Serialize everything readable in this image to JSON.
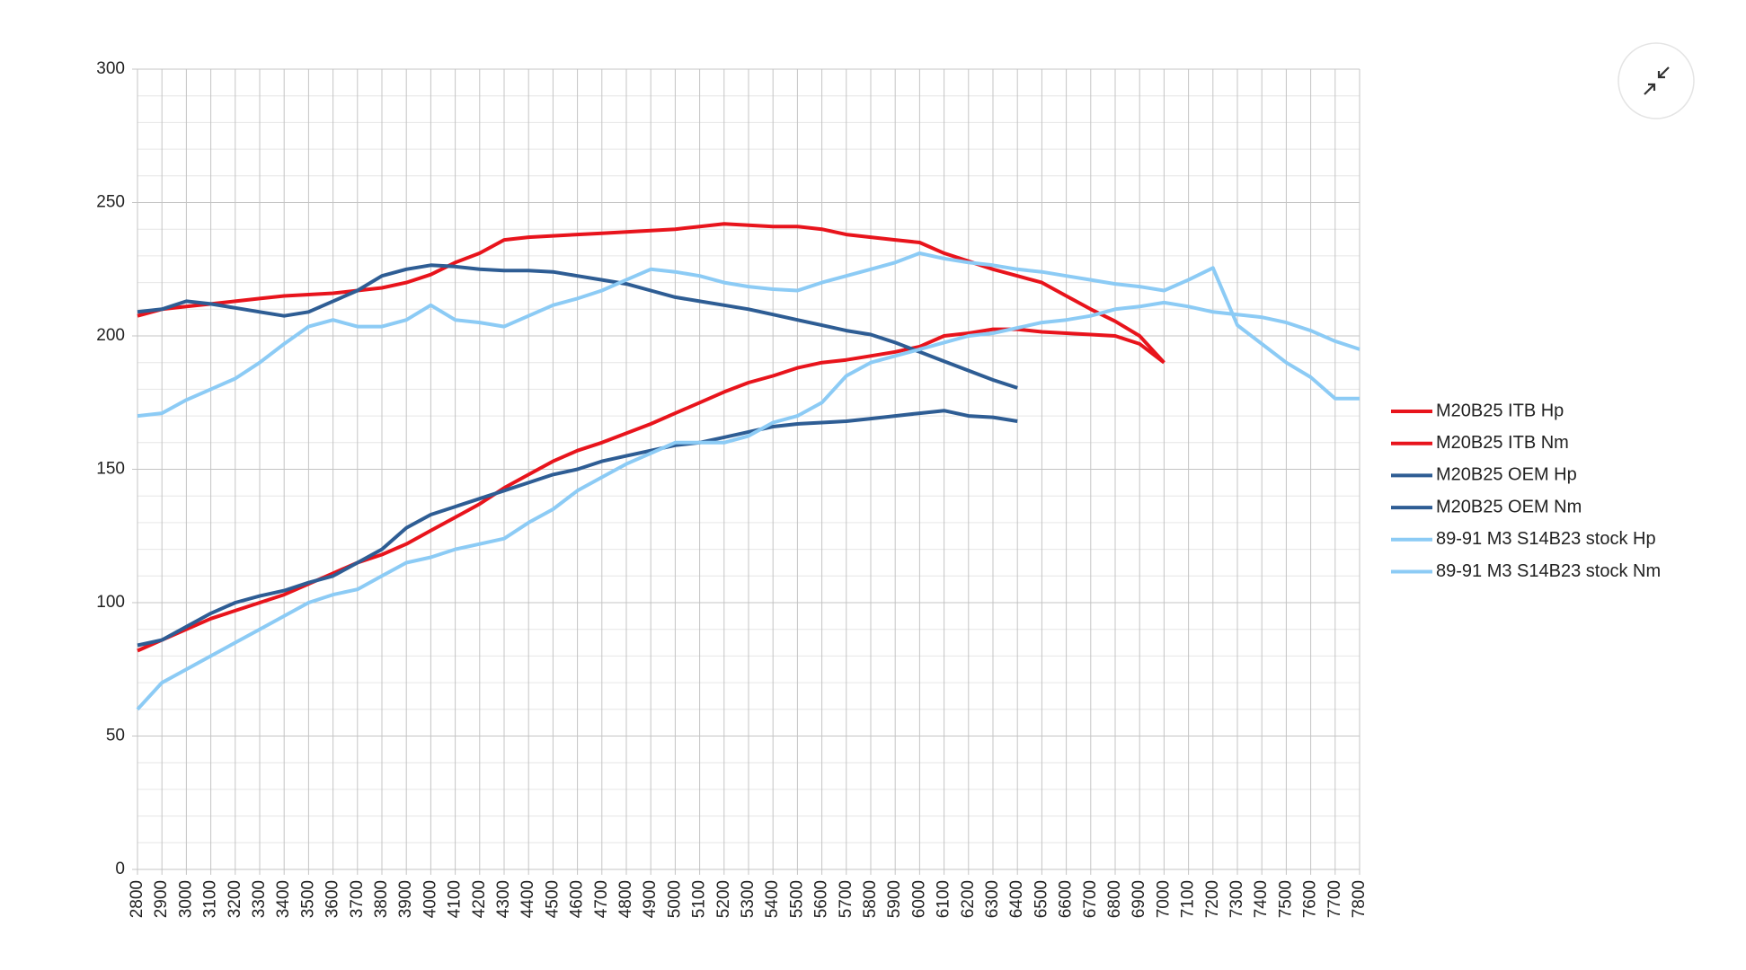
{
  "chart_data": {
    "type": "line",
    "x": [
      2800,
      2900,
      3000,
      3100,
      3200,
      3300,
      3400,
      3500,
      3600,
      3700,
      3800,
      3900,
      4000,
      4100,
      4200,
      4300,
      4400,
      4500,
      4600,
      4700,
      4800,
      4900,
      5000,
      5100,
      5200,
      5300,
      5400,
      5500,
      5600,
      5700,
      5800,
      5900,
      6000,
      6100,
      6200,
      6300,
      6400,
      6500,
      6600,
      6700,
      6800,
      6900,
      7000,
      7100,
      7200,
      7300,
      7400,
      7500,
      7600,
      7700,
      7800
    ],
    "xlim": [
      2800,
      7800
    ],
    "ylim": [
      0,
      300
    ],
    "yticks": [
      0,
      50,
      100,
      150,
      200,
      250,
      300
    ],
    "grid": true,
    "legend": "right",
    "series": [
      {
        "name": "M20B25 ITB Hp",
        "color": "#e8141c",
        "values": [
          82,
          86,
          90,
          94,
          97,
          100,
          103,
          107,
          111,
          115,
          118,
          122,
          127,
          132,
          137,
          143,
          148,
          153,
          157,
          160,
          163.5,
          167,
          171,
          175,
          179,
          182.5,
          185,
          188,
          190,
          191,
          192.5,
          194,
          196,
          200,
          201,
          202.5,
          202.5,
          201.5,
          201,
          200.5,
          200,
          197,
          190,
          null,
          null,
          null,
          null,
          null,
          null,
          null,
          null
        ]
      },
      {
        "name": "M20B25 ITB Nm",
        "color": "#e8141c",
        "values": [
          207.5,
          210,
          211,
          212,
          213,
          214,
          215,
          215.5,
          216,
          217,
          218,
          220,
          223,
          227.5,
          231,
          236,
          237,
          237.5,
          238,
          238.5,
          239,
          239.5,
          240,
          241,
          242,
          241.5,
          241,
          241,
          240,
          238,
          237,
          236,
          235,
          231,
          228,
          225,
          222.5,
          220,
          215,
          210,
          205.5,
          200,
          190,
          null,
          null,
          null,
          null,
          null,
          null,
          null,
          null
        ]
      },
      {
        "name": "M20B25 OEM Hp",
        "color": "#2e5d94",
        "values": [
          84,
          86,
          91,
          96,
          100,
          102.5,
          104.5,
          107.5,
          110,
          115,
          120,
          128,
          133,
          136,
          139,
          142,
          145,
          148,
          150,
          153,
          155,
          157,
          159,
          160,
          162,
          164,
          166,
          167,
          167.5,
          168,
          169,
          170,
          171,
          172,
          170,
          169.5,
          168,
          null,
          null,
          null,
          null,
          null,
          null,
          null,
          null,
          null,
          null,
          null,
          null,
          null,
          null
        ]
      },
      {
        "name": "M20B25 OEM Nm",
        "color": "#2e5d94",
        "values": [
          209,
          210,
          213,
          212,
          210.5,
          209,
          207.5,
          209,
          213,
          217,
          222.5,
          225,
          226.5,
          226,
          225,
          224.5,
          224.5,
          224,
          222.5,
          221,
          219.5,
          217,
          214.5,
          213,
          211.5,
          210,
          208,
          206,
          204,
          202,
          200.5,
          197.5,
          194,
          190.5,
          187,
          183.5,
          180.5,
          null,
          null,
          null,
          null,
          null,
          null,
          null,
          null,
          null,
          null,
          null,
          null,
          null,
          null
        ]
      },
      {
        "name": "89-91 M3 S14B23 stock Hp",
        "color": "#8ccbf5",
        "values": [
          60,
          70,
          75,
          80,
          85,
          90,
          95,
          100,
          103,
          105,
          110,
          115,
          117,
          120,
          122,
          124,
          130,
          135,
          142,
          147,
          152,
          156,
          160,
          160,
          160,
          162.5,
          167.5,
          170,
          175,
          185,
          190,
          192.5,
          195,
          197.5,
          200,
          201,
          203,
          205,
          206,
          207.5,
          210,
          211,
          212.5,
          211,
          209,
          208,
          207,
          205,
          202,
          198,
          195
        ]
      },
      {
        "name": "89-91 M3 S14B23 stock Nm",
        "color": "#8ccbf5",
        "values": [
          170,
          171,
          176,
          180,
          184,
          190,
          197,
          203.5,
          206,
          203.5,
          203.5,
          206,
          211.5,
          206,
          205,
          203.5,
          207.5,
          211.5,
          214,
          217,
          221,
          225,
          224,
          222.5,
          220,
          218.5,
          217.5,
          217,
          220,
          222.5,
          225,
          227.5,
          231,
          229,
          227.5,
          226.5,
          225,
          224,
          222.5,
          221,
          219.5,
          218.5,
          217,
          221,
          225.5,
          204,
          197,
          190,
          184.5,
          176.5,
          176.5
        ]
      }
    ]
  }
}
